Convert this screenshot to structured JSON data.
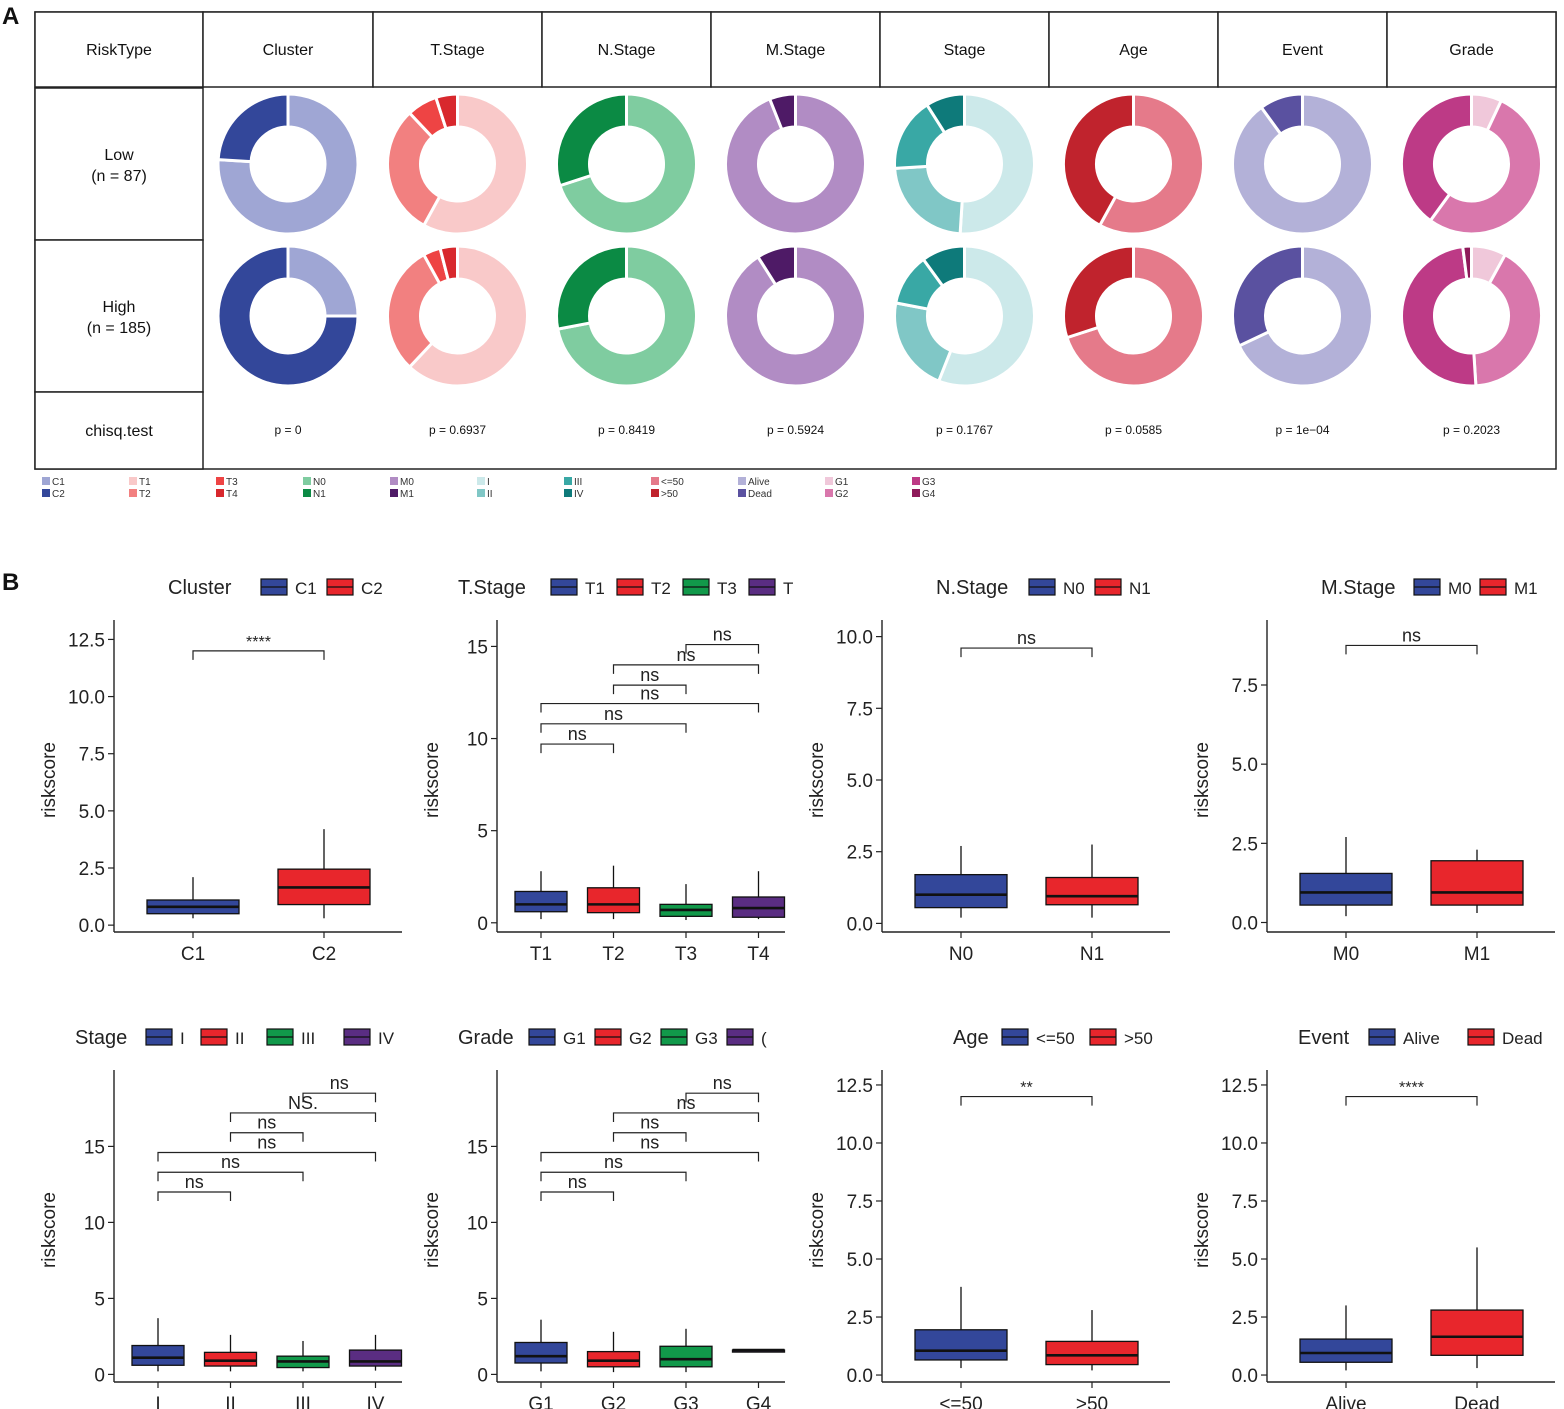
{
  "panel_a": {
    "label": "A",
    "header": [
      "RiskType",
      "Cluster",
      "T.Stage",
      "N.Stage",
      "M.Stage",
      "Stage",
      "Age",
      "Event",
      "Grade"
    ],
    "rows": [
      {
        "name": "Low",
        "n": "(n = 87)"
      },
      {
        "name": "High",
        "n": "(n = 185)"
      }
    ],
    "test_label": "chisq.test",
    "pvalues": [
      "p = 0",
      "p = 0.6937",
      "p = 0.8419",
      "p = 0.5924",
      "p = 0.1767",
      "p = 0.0585",
      "p = 1e−04",
      "p = 0.2023"
    ],
    "legend": [
      [
        {
          "label": "C1",
          "color": "#9fa6d4"
        },
        {
          "label": "C2",
          "color": "#33479a"
        }
      ],
      [
        {
          "label": "T1",
          "color": "#f9c9c9"
        },
        {
          "label": "T2",
          "color": "#f28080"
        }
      ],
      [
        {
          "label": "T3",
          "color": "#ee4444"
        },
        {
          "label": "T4",
          "color": "#d8282d"
        }
      ],
      [
        {
          "label": "N0",
          "color": "#7fcca0"
        },
        {
          "label": "N1",
          "color": "#0b8a44"
        }
      ],
      [
        {
          "label": "M0",
          "color": "#b18cc4"
        },
        {
          "label": "M1",
          "color": "#4e1a66"
        }
      ],
      [
        {
          "label": "I",
          "color": "#cce9ea"
        },
        {
          "label": "II",
          "color": "#80c7c6"
        }
      ],
      [
        {
          "label": "III",
          "color": "#39a8a5"
        },
        {
          "label": "IV",
          "color": "#0e7a7a"
        }
      ],
      [
        {
          "label": "<=50",
          "color": "#e57a8a"
        },
        {
          "label": ">50",
          "color": "#c0232d"
        }
      ],
      [
        {
          "label": "Alive",
          "color": "#b3b1d8"
        },
        {
          "label": "Dead",
          "color": "#5a51a0"
        }
      ],
      [
        {
          "label": "G1",
          "color": "#f0c8da"
        },
        {
          "label": "G2",
          "color": "#d977ac"
        }
      ],
      [
        {
          "label": "G3",
          "color": "#bd3a86"
        },
        {
          "label": "G4",
          "color": "#8e1a5a"
        }
      ]
    ]
  },
  "panel_b": {
    "label": "B"
  },
  "chart_data": [
    {
      "type": "donut",
      "title": "Cluster",
      "rows": [
        "Low",
        "High"
      ],
      "categories": [
        "C1",
        "C2"
      ],
      "colors": [
        "#9fa6d4",
        "#33479a"
      ],
      "values": {
        "Low": [
          0.76,
          0.24
        ],
        "High": [
          0.25,
          0.75
        ]
      },
      "test": "chisq.test",
      "p": "p = 0"
    },
    {
      "type": "donut",
      "title": "T.Stage",
      "rows": [
        "Low",
        "High"
      ],
      "categories": [
        "T1",
        "T2",
        "T3",
        "T4"
      ],
      "colors": [
        "#f9c9c9",
        "#f28080",
        "#ee4444",
        "#d8282d"
      ],
      "values": {
        "Low": [
          0.58,
          0.3,
          0.07,
          0.05
        ],
        "High": [
          0.62,
          0.3,
          0.04,
          0.04
        ]
      },
      "test": "chisq.test",
      "p": "p = 0.6937"
    },
    {
      "type": "donut",
      "title": "N.Stage",
      "rows": [
        "Low",
        "High"
      ],
      "categories": [
        "N0",
        "N1"
      ],
      "colors": [
        "#7fcca0",
        "#0b8a44"
      ],
      "values": {
        "Low": [
          0.7,
          0.3
        ],
        "High": [
          0.72,
          0.28
        ]
      },
      "test": "chisq.test",
      "p": "p = 0.8419"
    },
    {
      "type": "donut",
      "title": "M.Stage",
      "rows": [
        "Low",
        "High"
      ],
      "categories": [
        "M0",
        "M1"
      ],
      "colors": [
        "#b18cc4",
        "#4e1a66"
      ],
      "values": {
        "Low": [
          0.94,
          0.06
        ],
        "High": [
          0.91,
          0.09
        ]
      },
      "test": "chisq.test",
      "p": "p = 0.5924"
    },
    {
      "type": "donut",
      "title": "Stage",
      "rows": [
        "Low",
        "High"
      ],
      "categories": [
        "I",
        "II",
        "III",
        "IV"
      ],
      "colors": [
        "#cce9ea",
        "#80c7c6",
        "#39a8a5",
        "#0e7a7a"
      ],
      "values": {
        "Low": [
          0.51,
          0.23,
          0.17,
          0.09
        ],
        "High": [
          0.56,
          0.22,
          0.12,
          0.1
        ]
      },
      "test": "chisq.test",
      "p": "p = 0.1767"
    },
    {
      "type": "donut",
      "title": "Age",
      "rows": [
        "Low",
        "High"
      ],
      "categories": [
        "<=50",
        ">50"
      ],
      "colors": [
        "#e57a8a",
        "#c0232d"
      ],
      "values": {
        "Low": [
          0.58,
          0.42
        ],
        "High": [
          0.7,
          0.3
        ]
      },
      "test": "chisq.test",
      "p": "p = 0.0585"
    },
    {
      "type": "donut",
      "title": "Event",
      "rows": [
        "Low",
        "High"
      ],
      "categories": [
        "Alive",
        "Dead"
      ],
      "colors": [
        "#b3b1d8",
        "#5a51a0"
      ],
      "values": {
        "Low": [
          0.9,
          0.1
        ],
        "High": [
          0.68,
          0.32
        ]
      },
      "test": "chisq.test",
      "p": "p = 1e−04"
    },
    {
      "type": "donut",
      "title": "Grade",
      "rows": [
        "Low",
        "High"
      ],
      "categories": [
        "G1",
        "G2",
        "G3",
        "G4"
      ],
      "colors": [
        "#f0c8da",
        "#d977ac",
        "#bd3a86",
        "#8e1a5a"
      ],
      "values": {
        "Low": [
          0.07,
          0.53,
          0.4,
          0.0
        ],
        "High": [
          0.08,
          0.41,
          0.49,
          0.02
        ]
      },
      "test": "chisq.test",
      "p": "p = 0.2023"
    },
    {
      "type": "boxplot",
      "legend_title": "Cluster",
      "legend": [
        {
          "label": "C1",
          "color": "#33479a"
        },
        {
          "label": "C2",
          "color": "#e8262c"
        }
      ],
      "ylabel": "riskscore",
      "ylim": [
        -0.3,
        13
      ],
      "yticks": [
        0.0,
        2.5,
        5.0,
        7.5,
        10.0,
        12.5
      ],
      "ytick_labels": [
        "0.0",
        "2.5",
        "5.0",
        "7.5",
        "10.0",
        "12.5"
      ],
      "categories": [
        "C1",
        "C2"
      ],
      "colors": [
        "#33479a",
        "#e8262c"
      ],
      "boxes": [
        {
          "min": 0.3,
          "q1": 0.5,
          "median": 0.8,
          "q3": 1.1,
          "max": 2.1
        },
        {
          "min": 0.3,
          "q1": 0.9,
          "median": 1.65,
          "q3": 2.45,
          "max": 4.2
        }
      ],
      "comparisons": [
        {
          "from": 0,
          "to": 1,
          "label": "****",
          "y": 12.0
        }
      ]
    },
    {
      "type": "boxplot",
      "legend_title": "T.Stage",
      "legend": [
        {
          "label": "T1",
          "color": "#33479a"
        },
        {
          "label": "T2",
          "color": "#e8262c"
        },
        {
          "label": "T3",
          "color": "#11994a"
        },
        {
          "label": "T",
          "color": "#5a2d82"
        }
      ],
      "ylabel": "riskscore",
      "ylim": [
        -0.5,
        16
      ],
      "yticks": [
        0,
        5,
        10,
        15
      ],
      "ytick_labels": [
        "0",
        "5",
        "10",
        "15"
      ],
      "categories": [
        "T1",
        "T2",
        "T3",
        "T4"
      ],
      "colors": [
        "#33479a",
        "#e8262c",
        "#11994a",
        "#5a2d82"
      ],
      "boxes": [
        {
          "min": 0.2,
          "q1": 0.6,
          "median": 1.0,
          "q3": 1.7,
          "max": 2.8
        },
        {
          "min": 0.2,
          "q1": 0.55,
          "median": 1.0,
          "q3": 1.9,
          "max": 3.1
        },
        {
          "min": 0.15,
          "q1": 0.35,
          "median": 0.7,
          "q3": 1.0,
          "max": 2.1
        },
        {
          "min": 0.2,
          "q1": 0.3,
          "median": 0.8,
          "q3": 1.4,
          "max": 2.8
        }
      ],
      "comparisons": [
        {
          "from": 0,
          "to": 1,
          "label": "ns",
          "y": 9.7
        },
        {
          "from": 0,
          "to": 2,
          "label": "ns",
          "y": 10.8
        },
        {
          "from": 0,
          "to": 3,
          "label": "ns",
          "y": 11.9
        },
        {
          "from": 1,
          "to": 2,
          "label": "ns",
          "y": 12.9
        },
        {
          "from": 1,
          "to": 3,
          "label": "ns",
          "y": 14.0
        },
        {
          "from": 2,
          "to": 3,
          "label": "ns",
          "y": 15.1
        }
      ]
    },
    {
      "type": "boxplot",
      "legend_title": "N.Stage",
      "legend": [
        {
          "label": "N0",
          "color": "#33479a"
        },
        {
          "label": "N1",
          "color": "#e8262c"
        }
      ],
      "ylabel": "riskscore",
      "ylim": [
        -0.3,
        10.3
      ],
      "yticks": [
        0.0,
        2.5,
        5.0,
        7.5,
        10.0
      ],
      "ytick_labels": [
        "0.0",
        "2.5",
        "5.0",
        "7.5",
        "10.0"
      ],
      "categories": [
        "N0",
        "N1"
      ],
      "colors": [
        "#33479a",
        "#e8262c"
      ],
      "boxes": [
        {
          "min": 0.2,
          "q1": 0.55,
          "median": 1.0,
          "q3": 1.7,
          "max": 2.7
        },
        {
          "min": 0.2,
          "q1": 0.65,
          "median": 0.95,
          "q3": 1.6,
          "max": 2.75
        }
      ],
      "comparisons": [
        {
          "from": 0,
          "to": 1,
          "label": "ns",
          "y": 9.6
        }
      ]
    },
    {
      "type": "boxplot",
      "legend_title": "M.Stage",
      "legend": [
        {
          "label": "M0",
          "color": "#33479a"
        },
        {
          "label": "M1",
          "color": "#e8262c"
        }
      ],
      "ylabel": "riskscore",
      "ylim": [
        -0.3,
        9.3
      ],
      "yticks": [
        0.0,
        2.5,
        5.0,
        7.5
      ],
      "ytick_labels": [
        "0.0",
        "2.5",
        "5.0",
        "7.5"
      ],
      "categories": [
        "M0",
        "M1"
      ],
      "colors": [
        "#33479a",
        "#e8262c"
      ],
      "boxes": [
        {
          "min": 0.2,
          "q1": 0.55,
          "median": 0.95,
          "q3": 1.55,
          "max": 2.7
        },
        {
          "min": 0.3,
          "q1": 0.55,
          "median": 0.95,
          "q3": 1.95,
          "max": 2.3
        }
      ],
      "comparisons": [
        {
          "from": 0,
          "to": 1,
          "label": "ns",
          "y": 8.75
        }
      ]
    },
    {
      "type": "boxplot",
      "legend_title": "Stage",
      "legend": [
        {
          "label": "I",
          "color": "#33479a"
        },
        {
          "label": "II",
          "color": "#e8262c"
        },
        {
          "label": "III",
          "color": "#11994a"
        },
        {
          "label": "IV",
          "color": "#5a2d82"
        }
      ],
      "ylabel": "riskscore",
      "ylim": [
        -0.5,
        19.5
      ],
      "yticks": [
        0,
        5,
        10,
        15
      ],
      "ytick_labels": [
        "0",
        "5",
        "10",
        "15"
      ],
      "categories": [
        "I",
        "II",
        "III",
        "IV"
      ],
      "colors": [
        "#33479a",
        "#e8262c",
        "#11994a",
        "#5a2d82"
      ],
      "boxes": [
        {
          "min": 0.2,
          "q1": 0.6,
          "median": 1.1,
          "q3": 1.9,
          "max": 3.7
        },
        {
          "min": 0.2,
          "q1": 0.55,
          "median": 0.9,
          "q3": 1.45,
          "max": 2.6
        },
        {
          "min": 0.2,
          "q1": 0.45,
          "median": 0.85,
          "q3": 1.2,
          "max": 2.2
        },
        {
          "min": 0.25,
          "q1": 0.55,
          "median": 0.85,
          "q3": 1.6,
          "max": 2.6
        }
      ],
      "comparisons": [
        {
          "from": 0,
          "to": 1,
          "label": "ns",
          "y": 12.0
        },
        {
          "from": 0,
          "to": 2,
          "label": "ns",
          "y": 13.3
        },
        {
          "from": 0,
          "to": 3,
          "label": "ns",
          "y": 14.6
        },
        {
          "from": 1,
          "to": 2,
          "label": "ns",
          "y": 15.9
        },
        {
          "from": 1,
          "to": 3,
          "label": "NS.",
          "y": 17.2
        },
        {
          "from": 2,
          "to": 3,
          "label": "ns",
          "y": 18.5
        }
      ]
    },
    {
      "type": "boxplot",
      "legend_title": "Grade",
      "legend": [
        {
          "label": "G1",
          "color": "#33479a"
        },
        {
          "label": "G2",
          "color": "#e8262c"
        },
        {
          "label": "G3",
          "color": "#11994a"
        },
        {
          "label": "(",
          "color": "#5a2d82"
        }
      ],
      "ylabel": "riskscore",
      "ylim": [
        -0.5,
        19.5
      ],
      "yticks": [
        0,
        5,
        10,
        15
      ],
      "ytick_labels": [
        "0",
        "5",
        "10",
        "15"
      ],
      "categories": [
        "G1",
        "G2",
        "G3",
        "G4"
      ],
      "colors": [
        "#33479a",
        "#e8262c",
        "#11994a",
        "#5a2d82"
      ],
      "boxes": [
        {
          "min": 0.2,
          "q1": 0.75,
          "median": 1.2,
          "q3": 2.1,
          "max": 3.6
        },
        {
          "min": 0.15,
          "q1": 0.5,
          "median": 0.9,
          "q3": 1.5,
          "max": 2.8
        },
        {
          "min": 0.15,
          "q1": 0.5,
          "median": 1.0,
          "q3": 1.85,
          "max": 3.0
        },
        {
          "min": 1.6,
          "q1": 1.6,
          "median": 1.6,
          "q3": 1.6,
          "max": 1.6
        }
      ],
      "comparisons": [
        {
          "from": 0,
          "to": 1,
          "label": "ns",
          "y": 12.0
        },
        {
          "from": 0,
          "to": 2,
          "label": "ns",
          "y": 13.3
        },
        {
          "from": 0,
          "to": 3,
          "label": "ns",
          "y": 14.6
        },
        {
          "from": 1,
          "to": 2,
          "label": "ns",
          "y": 15.9
        },
        {
          "from": 1,
          "to": 3,
          "label": "ns",
          "y": 17.2
        },
        {
          "from": 2,
          "to": 3,
          "label": "ns",
          "y": 18.5
        }
      ]
    },
    {
      "type": "boxplot",
      "legend_title": "Age",
      "legend": [
        {
          "label": "<=50",
          "color": "#33479a"
        },
        {
          "label": ">50",
          "color": "#e8262c"
        }
      ],
      "ylabel": "riskscore",
      "ylim": [
        -0.3,
        12.8
      ],
      "yticks": [
        0.0,
        2.5,
        5.0,
        7.5,
        10.0,
        12.5
      ],
      "ytick_labels": [
        "0.0",
        "2.5",
        "5.0",
        "7.5",
        "10.0",
        "12.5"
      ],
      "categories": [
        "<=50",
        ">50"
      ],
      "colors": [
        "#33479a",
        "#e8262c"
      ],
      "boxes": [
        {
          "min": 0.3,
          "q1": 0.65,
          "median": 1.05,
          "q3": 1.95,
          "max": 3.8
        },
        {
          "min": 0.2,
          "q1": 0.45,
          "median": 0.85,
          "q3": 1.45,
          "max": 2.8
        }
      ],
      "comparisons": [
        {
          "from": 0,
          "to": 1,
          "label": "**",
          "y": 12.0
        }
      ]
    },
    {
      "type": "boxplot",
      "legend_title": "Event",
      "legend": [
        {
          "label": "Alive",
          "color": "#33479a"
        },
        {
          "label": "Dead",
          "color": "#e8262c"
        }
      ],
      "ylabel": "riskscore",
      "ylim": [
        -0.3,
        12.8
      ],
      "yticks": [
        0.0,
        2.5,
        5.0,
        7.5,
        10.0,
        12.5
      ],
      "ytick_labels": [
        "0.0",
        "2.5",
        "5.0",
        "7.5",
        "10.0",
        "12.5"
      ],
      "categories": [
        "Alive",
        "Dead"
      ],
      "colors": [
        "#33479a",
        "#e8262c"
      ],
      "boxes": [
        {
          "min": 0.2,
          "q1": 0.55,
          "median": 0.95,
          "q3": 1.55,
          "max": 3.0
        },
        {
          "min": 0.3,
          "q1": 0.85,
          "median": 1.65,
          "q3": 2.8,
          "max": 5.5
        }
      ],
      "comparisons": [
        {
          "from": 0,
          "to": 1,
          "label": "****",
          "y": 12.0
        }
      ]
    }
  ]
}
